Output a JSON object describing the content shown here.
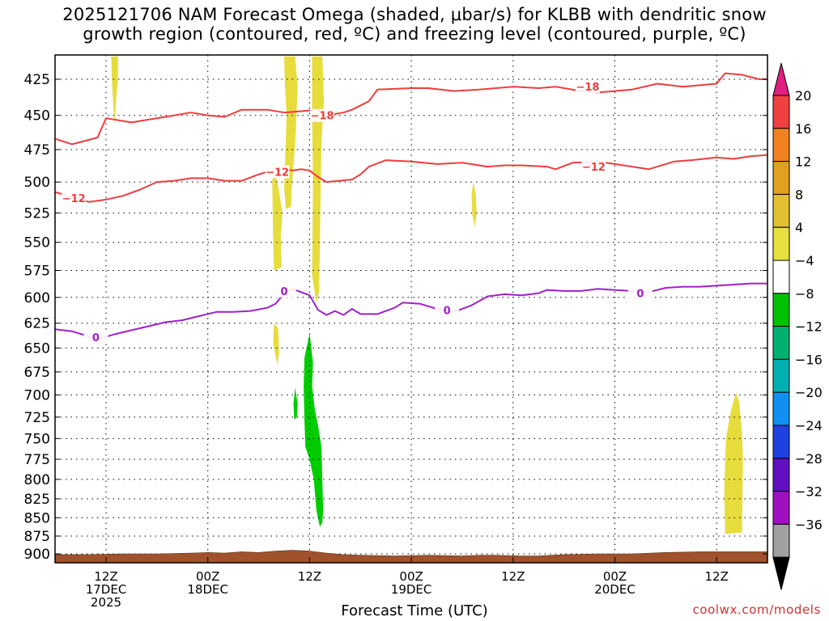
{
  "title": {
    "line1": "2025121706 NAM Forecast Omega (shaded, μbar/s) for KLBB with dendritic snow",
    "line2": "growth region (contoured, red, ºC) and freezing level (contoured, purple, ºC)"
  },
  "xlabel": "Forecast Time (UTC)",
  "credit": "coolwx.com/models",
  "chart_data": {
    "type": "time-height",
    "x_unit": "forecast hour from 2025-12-17 06Z",
    "xlim": [
      0,
      84
    ],
    "y_unit": "pressure (mb)",
    "ylim": [
      910,
      400
    ],
    "y_ticks": [
      425,
      450,
      475,
      500,
      525,
      550,
      575,
      600,
      625,
      650,
      675,
      700,
      725,
      750,
      775,
      800,
      825,
      850,
      875,
      900
    ],
    "x_ticks": [
      {
        "x": 6,
        "label": [
          "12Z",
          "17DEC",
          "2025"
        ]
      },
      {
        "x": 18,
        "label": [
          "00Z",
          "18DEC"
        ]
      },
      {
        "x": 30,
        "label": [
          "12Z"
        ]
      },
      {
        "x": 42,
        "label": [
          "00Z",
          "19DEC"
        ]
      },
      {
        "x": 54,
        "label": [
          "12Z"
        ]
      },
      {
        "x": 66,
        "label": [
          "00Z",
          "20DEC"
        ]
      },
      {
        "x": 78,
        "label": [
          "12Z"
        ]
      }
    ],
    "colorbar": {
      "labels": [
        "20",
        "16",
        "12",
        "8",
        "4",
        "−4",
        "−8",
        "−12",
        "−16",
        "−20",
        "−24",
        "−28",
        "−32",
        "−36"
      ],
      "colors": [
        "#f04040",
        "#f08020",
        "#e0a020",
        "#e0c030",
        "#e8e040",
        "#ffffff",
        "#00c000",
        "#00b070",
        "#00b0b0",
        "#1090f0",
        "#2040e0",
        "#6010c0",
        "#a010c0",
        "#a0a0a0"
      ],
      "top_arrow": "#e02080",
      "bottom_arrow": "#000000"
    },
    "contours": [
      {
        "name": "-18",
        "color": "#f03c3c",
        "points": [
          [
            0,
            467
          ],
          [
            2,
            471
          ],
          [
            5,
            466
          ],
          [
            6,
            452
          ],
          [
            9,
            455
          ],
          [
            13,
            451
          ],
          [
            16,
            448
          ],
          [
            18,
            450
          ],
          [
            20,
            451
          ],
          [
            22,
            446
          ],
          [
            25,
            446
          ],
          [
            27,
            448
          ],
          [
            29,
            447
          ],
          [
            31,
            446
          ],
          [
            32,
            451
          ],
          [
            33,
            449
          ],
          [
            34,
            448
          ],
          [
            35,
            446
          ],
          [
            37,
            440
          ],
          [
            38,
            432
          ],
          [
            42,
            431
          ],
          [
            44,
            431
          ],
          [
            47,
            433
          ],
          [
            50,
            432
          ],
          [
            54,
            430
          ],
          [
            57,
            431
          ],
          [
            59,
            430
          ],
          [
            62,
            433
          ],
          [
            64,
            434
          ],
          [
            66,
            433
          ],
          [
            68,
            432
          ],
          [
            71,
            428
          ],
          [
            74,
            430
          ],
          [
            78,
            428
          ],
          [
            79,
            421
          ],
          [
            81,
            422
          ],
          [
            83,
            425
          ],
          [
            84,
            425
          ]
        ],
        "labels": [
          [
            31.5,
            450
          ],
          [
            62.8,
            430
          ]
        ]
      },
      {
        "name": "-12",
        "color": "#f03c3c",
        "points": [
          [
            0,
            508
          ],
          [
            2,
            512
          ],
          [
            4,
            516
          ],
          [
            6,
            514
          ],
          [
            8,
            511
          ],
          [
            10,
            506
          ],
          [
            12,
            500
          ],
          [
            14,
            499
          ],
          [
            16,
            497
          ],
          [
            18,
            497
          ],
          [
            20,
            499
          ],
          [
            22,
            499
          ],
          [
            24,
            494
          ],
          [
            25,
            492
          ],
          [
            27,
            490
          ],
          [
            28,
            491
          ],
          [
            29,
            490
          ],
          [
            30,
            491
          ],
          [
            31,
            496
          ],
          [
            32,
            500
          ],
          [
            35,
            498
          ],
          [
            36,
            494
          ],
          [
            37,
            488
          ],
          [
            39,
            483
          ],
          [
            42,
            484
          ],
          [
            45,
            486
          ],
          [
            48,
            485
          ],
          [
            51,
            488
          ],
          [
            53,
            487
          ],
          [
            55,
            487
          ],
          [
            58,
            488
          ],
          [
            59,
            490
          ],
          [
            61,
            485
          ],
          [
            64,
            484
          ],
          [
            66,
            486
          ],
          [
            70,
            490
          ],
          [
            72,
            486
          ],
          [
            73,
            484
          ],
          [
            75,
            483
          ],
          [
            78,
            481
          ],
          [
            80,
            482
          ],
          [
            82,
            480
          ],
          [
            84,
            479
          ]
        ],
        "labels": [
          [
            2.2,
            513
          ],
          [
            26.2,
            492
          ],
          [
            63.5,
            488
          ]
        ]
      },
      {
        "name": "0",
        "color": "#a020c8",
        "points": [
          [
            0,
            631
          ],
          [
            2,
            633
          ],
          [
            5,
            641
          ],
          [
            7,
            636
          ],
          [
            9,
            632
          ],
          [
            11,
            628
          ],
          [
            13,
            624
          ],
          [
            15,
            622
          ],
          [
            17,
            618
          ],
          [
            19,
            614
          ],
          [
            21,
            614
          ],
          [
            23,
            613
          ],
          [
            25,
            610
          ],
          [
            26,
            606
          ],
          [
            27,
            596
          ],
          [
            28,
            592
          ],
          [
            30,
            598
          ],
          [
            31,
            612
          ],
          [
            32,
            617
          ],
          [
            33,
            613
          ],
          [
            34,
            617
          ],
          [
            35,
            611
          ],
          [
            36,
            616
          ],
          [
            38,
            616
          ],
          [
            40,
            610
          ],
          [
            41,
            605
          ],
          [
            43,
            606
          ],
          [
            45,
            611
          ],
          [
            47,
            614
          ],
          [
            49,
            608
          ],
          [
            51,
            599
          ],
          [
            53,
            597
          ],
          [
            55,
            598
          ],
          [
            57,
            596
          ],
          [
            58,
            593
          ],
          [
            60,
            594
          ],
          [
            62,
            594
          ],
          [
            64,
            592
          ],
          [
            66,
            593
          ],
          [
            68,
            594
          ],
          [
            70,
            595
          ],
          [
            72,
            591
          ],
          [
            74,
            590
          ],
          [
            76,
            590
          ],
          [
            78,
            589
          ],
          [
            80,
            588
          ],
          [
            82,
            587
          ],
          [
            84,
            587
          ]
        ],
        "labels": [
          [
            4.8,
            639
          ],
          [
            27,
            594
          ],
          [
            46.2,
            612
          ],
          [
            69,
            596
          ]
        ]
      }
    ],
    "shaded_regions": [
      {
        "omega": "4 to 8",
        "color": "#e6dc3c",
        "polygon": [
          [
            6.6,
            410
          ],
          [
            7.4,
            410
          ],
          [
            7.4,
            425
          ],
          [
            7.2,
            438
          ],
          [
            7.0,
            456
          ],
          [
            6.8,
            438
          ],
          [
            6.7,
            425
          ]
        ]
      },
      {
        "omega": "4 to 8",
        "color": "#e6dc3c",
        "polygon": [
          [
            27.0,
            410
          ],
          [
            28.3,
            410
          ],
          [
            28.6,
            430
          ],
          [
            28.3,
            470
          ],
          [
            27.9,
            505
          ],
          [
            27.8,
            520
          ],
          [
            27.2,
            522
          ],
          [
            27.0,
            505
          ],
          [
            27.3,
            450
          ],
          [
            27.1,
            430
          ]
        ]
      },
      {
        "omega": "4 to 8",
        "color": "#e6dc3c",
        "polygon": [
          [
            25.7,
            485
          ],
          [
            26.2,
            500
          ],
          [
            26.8,
            525
          ],
          [
            26.6,
            545
          ],
          [
            26.7,
            572
          ],
          [
            25.8,
            575
          ],
          [
            25.7,
            550
          ],
          [
            25.6,
            500
          ]
        ]
      },
      {
        "omega": "4 to 8",
        "color": "#e6dc3c",
        "polygon": [
          [
            30.3,
            410
          ],
          [
            31.5,
            410
          ],
          [
            31.7,
            440
          ],
          [
            31.4,
            470
          ],
          [
            31.3,
            510
          ],
          [
            31.2,
            560
          ],
          [
            31.1,
            595
          ],
          [
            30.8,
            605
          ],
          [
            30.3,
            580
          ],
          [
            30.4,
            500
          ],
          [
            30.3,
            450
          ]
        ]
      },
      {
        "omega": "4 to 8",
        "color": "#e6dc3c",
        "polygon": [
          [
            49.3,
            500
          ],
          [
            49.6,
            510
          ],
          [
            49.7,
            525
          ],
          [
            49.5,
            537
          ],
          [
            49.2,
            527
          ],
          [
            49.1,
            510
          ]
        ]
      },
      {
        "omega": "4 to 8",
        "color": "#e6dc3c",
        "polygon": [
          [
            25.8,
            625
          ],
          [
            26.3,
            630
          ],
          [
            26.4,
            655
          ],
          [
            26.2,
            668
          ],
          [
            25.7,
            645
          ]
        ]
      },
      {
        "omega": "4 to 8",
        "color": "#e6dc3c",
        "polygon": [
          [
            80.3,
            697
          ],
          [
            80.7,
            710
          ],
          [
            81.0,
            745
          ],
          [
            81.1,
            776
          ],
          [
            81.0,
            870
          ],
          [
            79.0,
            872
          ],
          [
            78.9,
            815
          ],
          [
            79.1,
            750
          ],
          [
            79.7,
            717
          ]
        ]
      },
      {
        "omega": "-4 to -8",
        "color": "#00cc00",
        "polygon": [
          [
            30.0,
            635
          ],
          [
            30.4,
            665
          ],
          [
            30.3,
            690
          ],
          [
            30.6,
            715
          ],
          [
            31.0,
            735
          ],
          [
            31.4,
            760
          ],
          [
            31.5,
            800
          ],
          [
            31.6,
            840
          ],
          [
            31.5,
            857
          ],
          [
            31.2,
            862
          ],
          [
            30.8,
            840
          ],
          [
            30.5,
            800
          ],
          [
            30.0,
            775
          ],
          [
            29.5,
            760
          ],
          [
            29.4,
            730
          ],
          [
            29.3,
            690
          ],
          [
            29.4,
            660
          ]
        ]
      },
      {
        "omega": "-4 to -8",
        "color": "#00cc00",
        "polygon": [
          [
            28.3,
            692
          ],
          [
            28.6,
            710
          ],
          [
            28.5,
            725
          ],
          [
            28.2,
            728
          ],
          [
            28.1,
            710
          ]
        ]
      }
    ],
    "terrain": {
      "color": "#a0522d",
      "surface_pressure": [
        [
          0,
          901
        ],
        [
          4,
          901
        ],
        [
          8,
          900
        ],
        [
          12,
          900
        ],
        [
          16,
          899
        ],
        [
          18,
          898
        ],
        [
          20,
          899
        ],
        [
          22,
          897
        ],
        [
          24,
          898
        ],
        [
          26,
          896
        ],
        [
          28,
          895
        ],
        [
          30,
          896
        ],
        [
          32,
          899
        ],
        [
          34,
          901
        ],
        [
          36,
          902
        ],
        [
          40,
          903
        ],
        [
          44,
          902
        ],
        [
          48,
          903
        ],
        [
          50,
          902
        ],
        [
          52,
          902
        ],
        [
          55,
          903
        ],
        [
          57,
          903
        ],
        [
          60,
          901
        ],
        [
          64,
          900
        ],
        [
          68,
          900
        ],
        [
          72,
          898
        ],
        [
          76,
          897
        ],
        [
          80,
          897
        ],
        [
          84,
          897
        ]
      ]
    }
  }
}
